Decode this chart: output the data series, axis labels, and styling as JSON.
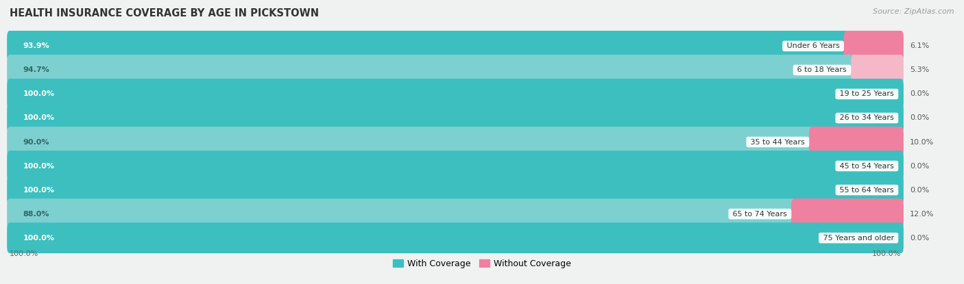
{
  "title": "HEALTH INSURANCE COVERAGE BY AGE IN PICKSTOWN",
  "source": "Source: ZipAtlas.com",
  "categories": [
    "Under 6 Years",
    "6 to 18 Years",
    "19 to 25 Years",
    "26 to 34 Years",
    "35 to 44 Years",
    "45 to 54 Years",
    "55 to 64 Years",
    "65 to 74 Years",
    "75 Years and older"
  ],
  "with_coverage": [
    93.9,
    94.7,
    100.0,
    100.0,
    90.0,
    100.0,
    100.0,
    88.0,
    100.0
  ],
  "without_coverage": [
    6.1,
    5.3,
    0.0,
    0.0,
    10.0,
    0.0,
    0.0,
    12.0,
    0.0
  ],
  "colors_with": [
    "#3DBFBF",
    "#7DD0D0",
    "#3DBFBF",
    "#3DBFBF",
    "#7DD0D0",
    "#3DBFBF",
    "#3DBFBF",
    "#7DD0D0",
    "#3DBFBF"
  ],
  "colors_without": [
    "#F080A0",
    "#F5B8C8",
    "#F5B8C8",
    "#F5B8C8",
    "#F080A0",
    "#F5B8C8",
    "#F5B8C8",
    "#F080A0",
    "#F5B8C8"
  ],
  "color_with_legend": "#3DBFBF",
  "color_without_legend": "#F080A0",
  "row_bg_color": "#e8ecec",
  "fig_bg_color": "#f0f2f2",
  "title_fontsize": 10.5,
  "source_fontsize": 8,
  "label_fontsize": 8,
  "pct_fontsize": 8,
  "legend_fontsize": 9
}
